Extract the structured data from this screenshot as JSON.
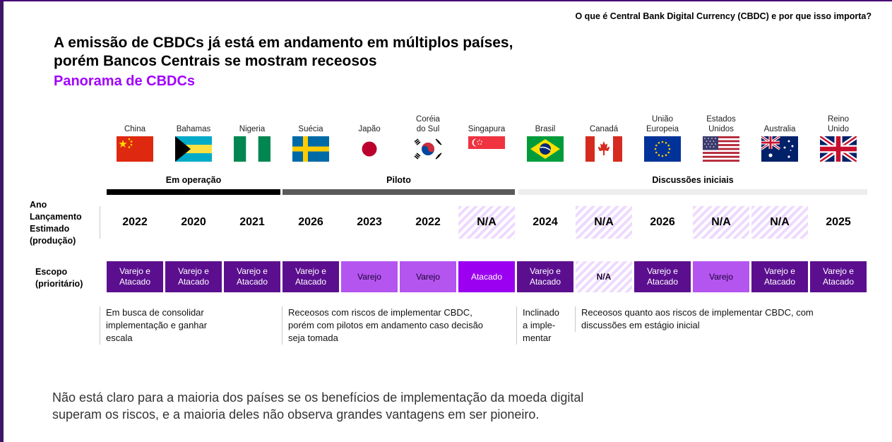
{
  "header": {
    "text": "O que é Central Bank Digital Currency (CBDC) e por que isso importa?"
  },
  "title": {
    "line1": "A emissão de CBDCs já está em andamento em múltiplos países,",
    "line2": "porém Bancos Centrais se mostram receosos"
  },
  "subtitle": "Panorama de CBDCs",
  "stages": {
    "operacao": "Em operação",
    "piloto": "Piloto",
    "discussoes": "Discussões iniciais"
  },
  "row_labels": {
    "ano": "Ano\nLançamento\nEstimado\n(produção)",
    "escopo": "Escopo\n(prioritário)"
  },
  "countries": [
    {
      "name": "China",
      "year": "2022",
      "scope": "Varejo e\nAtacado"
    },
    {
      "name": "Bahamas",
      "year": "2020",
      "scope": "Varejo e\nAtacado"
    },
    {
      "name": "Nigeria",
      "year": "2021",
      "scope": "Varejo e\nAtacado"
    },
    {
      "name": "Suécia",
      "year": "2026",
      "scope": "Varejo e\nAtacado"
    },
    {
      "name": "Japão",
      "year": "2023",
      "scope": "Varejo"
    },
    {
      "name": "Coréia\ndo Sul",
      "year": "2022",
      "scope": "Varejo"
    },
    {
      "name": "Singapura",
      "year": "N/A",
      "scope": "Atacado"
    },
    {
      "name": "Brasil",
      "year": "2024",
      "scope": "Varejo e\nAtacado"
    },
    {
      "name": "Canadá",
      "year": "N/A",
      "scope": "N/A"
    },
    {
      "name": "União\nEuropeia",
      "year": "2026",
      "scope": "Varejo e\nAtacado"
    },
    {
      "name": "Estados\nUnidos",
      "year": "N/A",
      "scope": "Varejo"
    },
    {
      "name": "Australia",
      "year": "N/A",
      "scope": "Varejo e\nAtacado"
    },
    {
      "name": "Reino\nUnido",
      "year": "2025",
      "scope": "Varejo e\nAtacado"
    }
  ],
  "notes": {
    "operacao": "Em busca de consolidar\nimplementação e ganhar\nescala",
    "piloto": "Receosos com riscos de implementar CBDC,\nporém com pilotos em andamento caso decisão\nseja tomada",
    "brasil": "Inclinado\na imple-\nmentar",
    "discussoes": "Receosos quanto aos riscos de implementar CBDC, com\ndiscussões em estágio inicial"
  },
  "footer": {
    "line1": "Não está claro para a maioria dos países se os benefícios de implementação da moeda digital",
    "line2": "superam os riscos, e a maioria deles não observa grandes vantagens em ser pioneiro."
  }
}
